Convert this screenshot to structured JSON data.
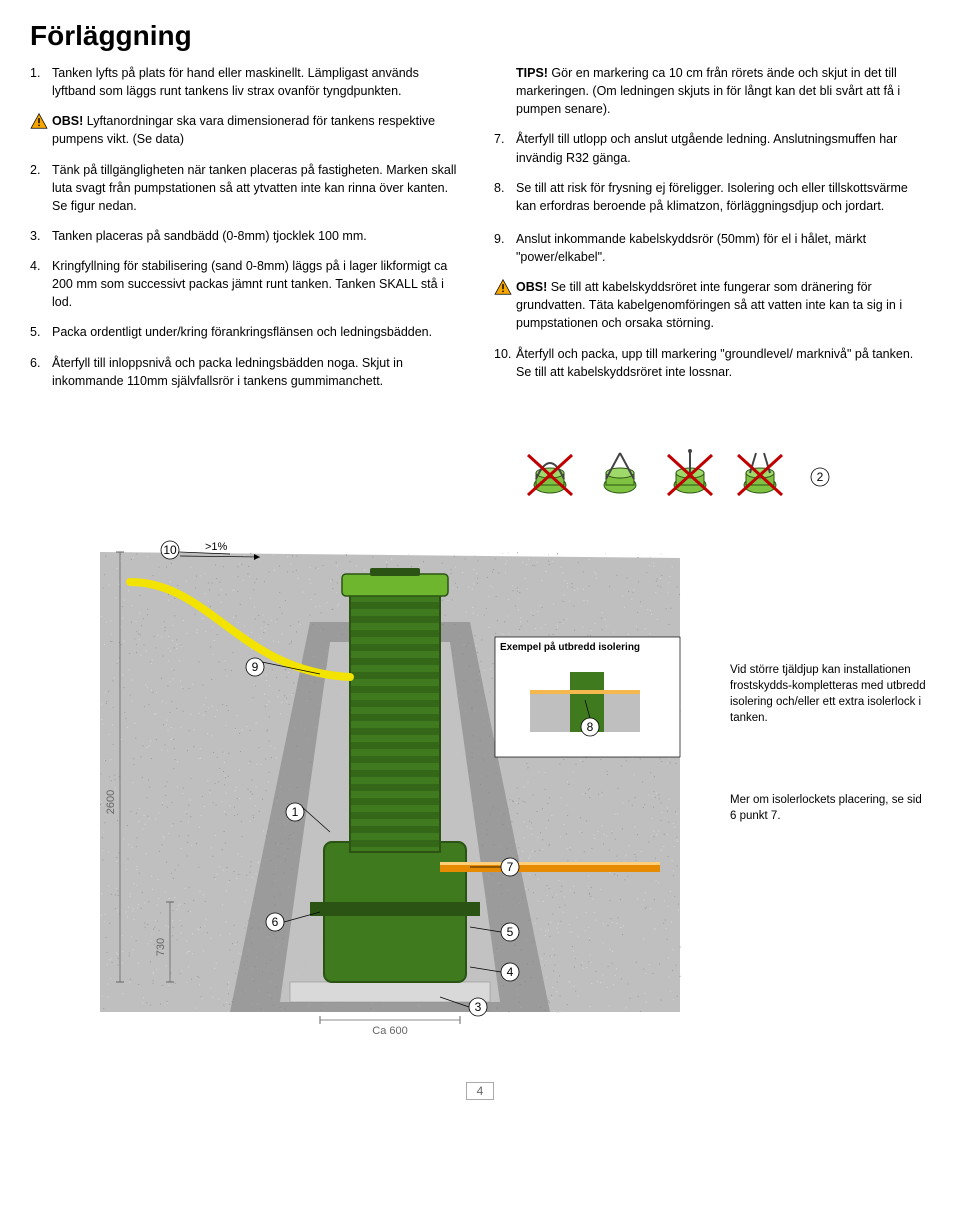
{
  "title": "Förläggning",
  "left": [
    {
      "n": "1.",
      "icon": null,
      "text": "Tanken lyfts på plats för hand eller maskinellt. Lämpligast används lyftband som läggs runt tankens liv strax ovanför tyngdpunkten."
    },
    {
      "n": "",
      "icon": "warn",
      "text": "<b>OBS!</b> Lyftanordningar ska vara dimensionerad för tankens respektive pumpens vikt. (Se data)"
    },
    {
      "n": "2.",
      "icon": null,
      "text": "Tänk på tillgängligheten när tanken placeras på fastigheten. Marken skall luta svagt från pumpstationen så att ytvatten inte kan rinna över kanten. Se figur nedan."
    },
    {
      "n": "3.",
      "icon": null,
      "text": "Tanken placeras på sandbädd (0-8mm) tjocklek 100 mm."
    },
    {
      "n": "4.",
      "icon": null,
      "text": "Kringfyllning för stabilisering (sand 0-8mm) läggs på i lager likformigt ca 200 mm som successivt packas jämnt runt tanken. Tanken SKALL stå i lod."
    },
    {
      "n": "5.",
      "icon": null,
      "text": "Packa ordentligt under/kring förankringsflänsen och ledningsbädden."
    },
    {
      "n": "6.",
      "icon": null,
      "text": "Återfyll till inloppsnivå och packa ledningsbädden noga. Skjut in inkommande 110mm självfallsrör i tankens gummimanchett."
    }
  ],
  "right": [
    {
      "n": "",
      "icon": null,
      "text": "<b>TIPS!</b> Gör en markering ca 10 cm från rörets ände och skjut in det till  markeringen. (Om ledningen skjuts in för långt kan det bli svårt att få i pumpen senare)."
    },
    {
      "n": "7.",
      "icon": null,
      "text": "Återfyll till utlopp och anslut utgående ledning. Anslutningsmuffen har invändig R32 gänga."
    },
    {
      "n": "8.",
      "icon": "snow",
      "text": "Se till att risk för frysning ej föreligger. Isolering och eller tillskottsvärme kan erfordras beroende på klimatzon, förläggningsdjup och jordart."
    },
    {
      "n": "9.",
      "icon": null,
      "text": "Anslut inkommande kabelskyddsrör (50mm) för el i hålet, märkt \"power/elkabel\"."
    },
    {
      "n": "",
      "icon": "warn",
      "text": "<b>OBS!</b> Se till att kabelskyddsröret inte fungerar som dränering för grundvatten. Täta kabelgenomföringen så att vatten inte kan ta sig in i pumpstationen och orsaka störning."
    },
    {
      "n": "10.",
      "icon": null,
      "text": "Återfyll och packa, upp till markering \"groundlevel/ marknivå\" på tanken. Se till att kabelskyddsröret inte lossnar."
    }
  ],
  "diagram": {
    "callouts": [
      "1",
      "2",
      "3",
      "4",
      "5",
      "6",
      "7",
      "8",
      "9",
      "10"
    ],
    "slope": ">1%",
    "dim_h1": "2600",
    "dim_h2": "730",
    "dim_w": "Ca 600",
    "inset_label": "Exempel på utbredd isolering",
    "note1": "Vid större tjäldjup kan installationen frostskydds-kompletteras med utbredd isolering och/eller ett extra isolerlock i tanken.",
    "note2": "Mer om isolerlockets placering, se sid 6 punkt 7.",
    "colors": {
      "sky": "#ffffff",
      "ground_light": "#bfbfbf",
      "ground_dark": "#7d7d7d",
      "sand": "#cfcfcf",
      "tank_green": "#3f7a1e",
      "tank_dark": "#2b5414",
      "lid_green": "#6fb62f",
      "pipe_yellow": "#f3e300",
      "pipe_orange": "#e68a00",
      "callout_fill": "#ffffff",
      "callout_stroke": "#000000",
      "dim_gray": "#666666",
      "cross_red": "#c00000",
      "lift_green": "#7fc241"
    }
  },
  "page": "4"
}
